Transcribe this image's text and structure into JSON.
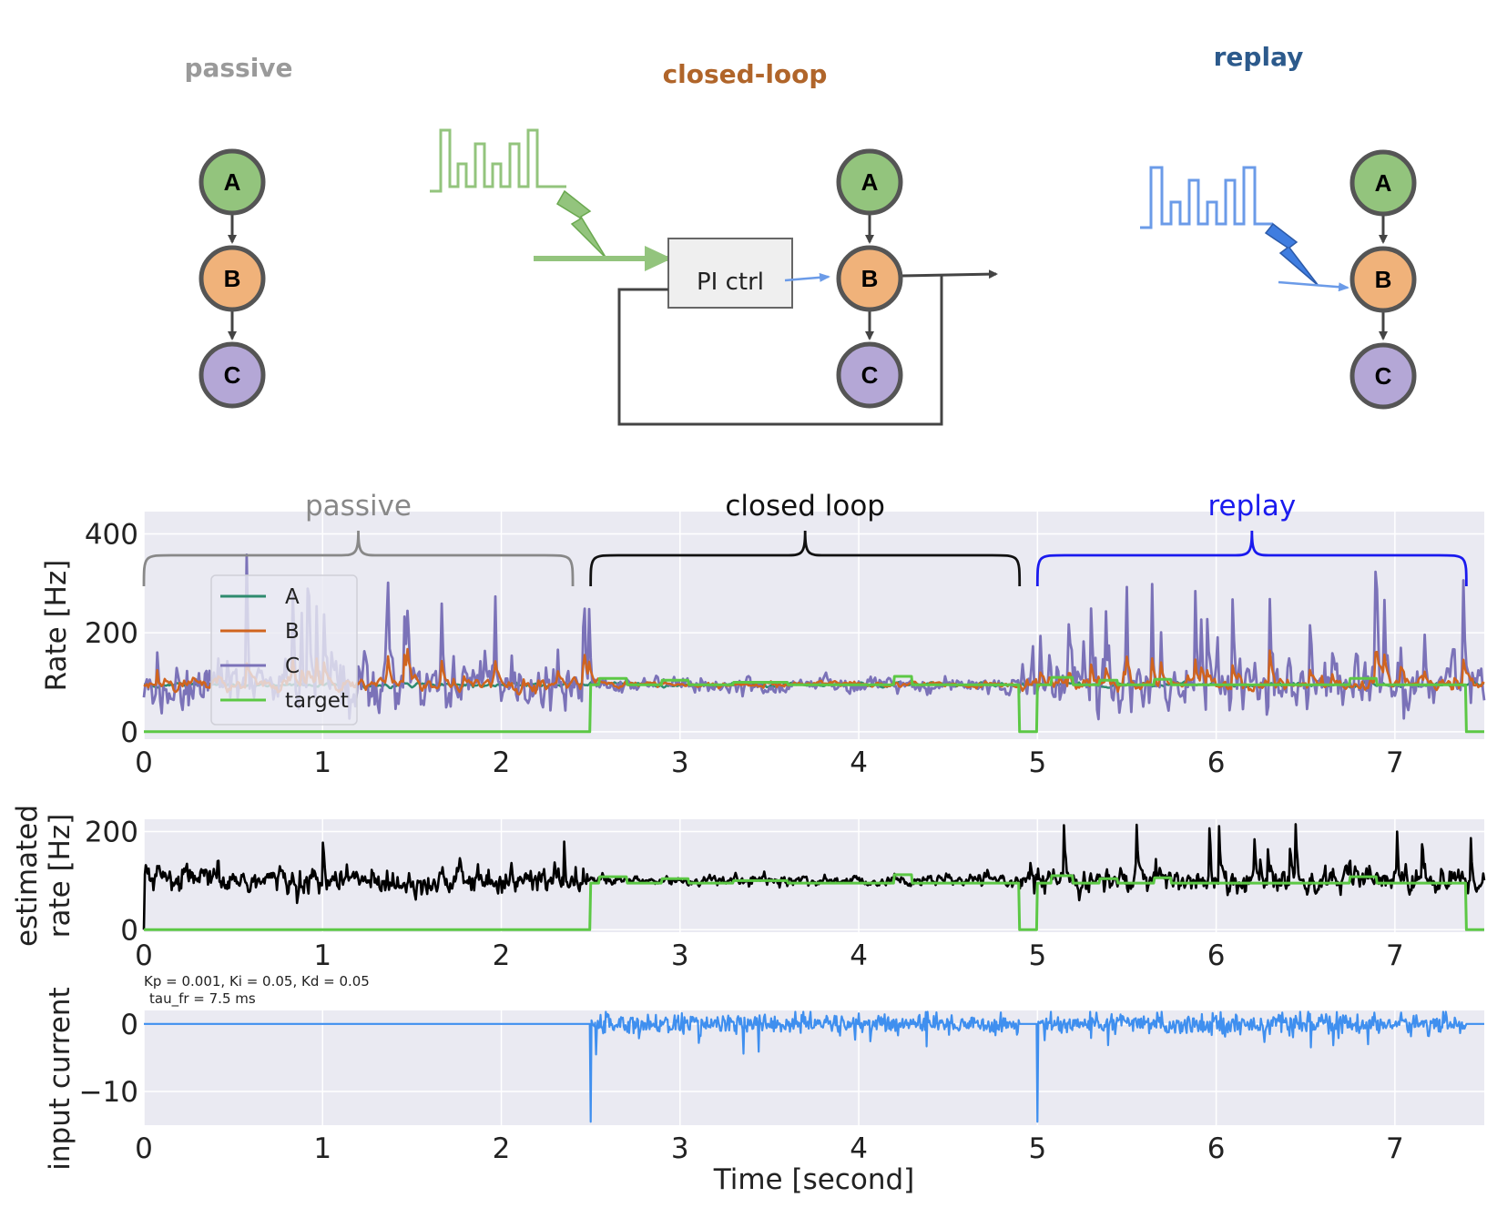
{
  "diagrams": {
    "passive": {
      "title": "passive",
      "color": "#9a9a9a",
      "nodes": [
        "A",
        "B",
        "C"
      ]
    },
    "closed_loop": {
      "title": "closed-loop",
      "color": "#b0652a",
      "nodes": [
        "A",
        "B",
        "C"
      ],
      "controller": "PI ctrl"
    },
    "replay": {
      "title": "replay",
      "color": "#2c5a8c",
      "nodes": [
        "A",
        "B",
        "C"
      ]
    }
  },
  "colors": {
    "node_A": "#93c47d",
    "node_B": "#f0b27a",
    "node_C": "#b4a7d6",
    "series_A": "#2e8b6e",
    "series_B": "#d0641e",
    "series_C": "#7b72b8",
    "target": "#5cc845",
    "estimated": "#000000",
    "input": "#3f8fef",
    "plot_bg": "#eaeaf2",
    "brace_passive": "#888888",
    "brace_closed": "#111111",
    "brace_replay": "#1a1aee"
  },
  "chart_data": [
    {
      "type": "line",
      "ylabel": "Rate [Hz]",
      "xlim": [
        0,
        7.5
      ],
      "ylim": [
        -15,
        445
      ],
      "yticks": [
        "0",
        "200",
        "400"
      ],
      "xticks": [
        "0",
        "1",
        "2",
        "3",
        "4",
        "5",
        "6",
        "7"
      ],
      "grid": true,
      "legend": {
        "placement": "upper-left",
        "entries": [
          "A",
          "B",
          "C",
          "target"
        ]
      },
      "annotations": [
        {
          "text": "passive",
          "x_range": [
            0,
            2.4
          ]
        },
        {
          "text": "closed loop",
          "x_range": [
            2.5,
            4.9
          ]
        },
        {
          "text": "replay",
          "x_range": [
            5.0,
            7.4
          ]
        }
      ],
      "series": [
        {
          "name": "A",
          "mean": 95
        },
        {
          "name": "B",
          "mean": 95
        },
        {
          "name": "C",
          "mean": 95
        },
        {
          "name": "target",
          "segments": [
            {
              "x": [
                0,
                2.5
              ],
              "y": 0
            },
            {
              "x": [
                2.5,
                4.9
              ],
              "y": 95
            },
            {
              "x": [
                4.9,
                5.0
              ],
              "y": 0
            },
            {
              "x": [
                5.0,
                7.4
              ],
              "y": 95
            },
            {
              "x": [
                7.4,
                7.5
              ],
              "y": 0
            }
          ]
        }
      ]
    },
    {
      "type": "line",
      "ylabel": "estimated rate [Hz]",
      "xlim": [
        0,
        7.5
      ],
      "ylim": [
        -5,
        225
      ],
      "yticks": [
        "0",
        "200"
      ],
      "xticks": [
        "0",
        "1",
        "2",
        "3",
        "4",
        "5",
        "6",
        "7"
      ],
      "grid": true,
      "note": [
        "Kp = 0.001, Ki = 0.05, Kd = 0.05",
        "tau_fr = 7.5 ms"
      ]
    },
    {
      "type": "line",
      "ylabel": "input current",
      "xlabel": "Time [second]",
      "xlim": [
        0,
        7.5
      ],
      "ylim": [
        -15,
        2
      ],
      "yticks": [
        "0",
        "−10"
      ],
      "xticks": [
        "0",
        "1",
        "2",
        "3",
        "4",
        "5",
        "6",
        "7"
      ],
      "grid": true
    }
  ]
}
